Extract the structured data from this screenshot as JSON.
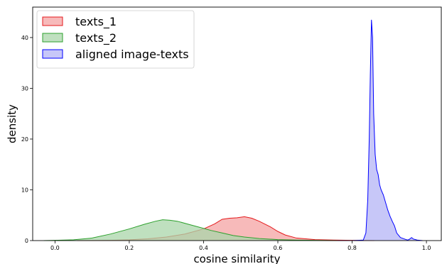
{
  "chart_data": {
    "type": "area",
    "xlabel": "cosine similarity",
    "ylabel": "density",
    "xlim": [
      -0.06,
      1.04
    ],
    "ylim": [
      0,
      46
    ],
    "xticks": [
      0.0,
      0.2,
      0.4,
      0.6,
      0.8,
      1.0
    ],
    "xtick_labels": [
      "0.0",
      "0.2",
      "0.4",
      "0.6",
      "0.8",
      "1.0"
    ],
    "yticks": [
      0,
      10,
      20,
      30,
      40
    ],
    "ytick_labels": [
      "0",
      "10",
      "20",
      "30",
      "40"
    ],
    "grid": false,
    "legend_position": "top-left",
    "series": [
      {
        "name": "texts_1",
        "color": "#e41a1c",
        "fill": "#f4a3a3",
        "points": [
          [
            0.06,
            0
          ],
          [
            0.15,
            0.05
          ],
          [
            0.2,
            0.15
          ],
          [
            0.25,
            0.35
          ],
          [
            0.3,
            0.7
          ],
          [
            0.35,
            1.3
          ],
          [
            0.4,
            2.3
          ],
          [
            0.43,
            3.3
          ],
          [
            0.45,
            4.2
          ],
          [
            0.47,
            4.4
          ],
          [
            0.49,
            4.5
          ],
          [
            0.51,
            4.7
          ],
          [
            0.53,
            4.4
          ],
          [
            0.55,
            3.8
          ],
          [
            0.58,
            2.7
          ],
          [
            0.6,
            1.8
          ],
          [
            0.62,
            1.1
          ],
          [
            0.65,
            0.5
          ],
          [
            0.7,
            0.2
          ],
          [
            0.75,
            0.1
          ],
          [
            0.8,
            0.05
          ],
          [
            0.86,
            0
          ]
        ]
      },
      {
        "name": "texts_2",
        "color": "#2ca02c",
        "fill": "#a9d6a9",
        "points": [
          [
            -0.03,
            0
          ],
          [
            0.0,
            0.05
          ],
          [
            0.05,
            0.15
          ],
          [
            0.1,
            0.5
          ],
          [
            0.15,
            1.3
          ],
          [
            0.2,
            2.3
          ],
          [
            0.24,
            3.2
          ],
          [
            0.27,
            3.8
          ],
          [
            0.29,
            4.1
          ],
          [
            0.31,
            4.0
          ],
          [
            0.33,
            3.8
          ],
          [
            0.36,
            3.2
          ],
          [
            0.39,
            2.6
          ],
          [
            0.42,
            2.0
          ],
          [
            0.45,
            1.5
          ],
          [
            0.48,
            1.0
          ],
          [
            0.51,
            0.7
          ],
          [
            0.55,
            0.4
          ],
          [
            0.6,
            0.2
          ],
          [
            0.65,
            0.1
          ],
          [
            0.7,
            0.05
          ],
          [
            0.76,
            0
          ]
        ]
      },
      {
        "name": "aligned image-texts",
        "color": "#0000ff",
        "fill": "#b4b4f5",
        "points": [
          [
            0.76,
            0
          ],
          [
            0.8,
            0
          ],
          [
            0.83,
            0.1
          ],
          [
            0.837,
            1.5
          ],
          [
            0.842,
            8
          ],
          [
            0.846,
            20
          ],
          [
            0.849,
            33
          ],
          [
            0.852,
            43.5
          ],
          [
            0.855,
            40
          ],
          [
            0.858,
            25
          ],
          [
            0.862,
            17
          ],
          [
            0.866,
            14
          ],
          [
            0.87,
            13
          ],
          [
            0.874,
            11
          ],
          [
            0.878,
            10
          ],
          [
            0.884,
            9
          ],
          [
            0.89,
            7.5
          ],
          [
            0.896,
            6
          ],
          [
            0.902,
            4.8
          ],
          [
            0.908,
            3.8
          ],
          [
            0.914,
            2.9
          ],
          [
            0.92,
            1.5
          ],
          [
            0.93,
            0.6
          ],
          [
            0.945,
            0.2
          ],
          [
            0.95,
            0.1
          ],
          [
            0.955,
            0.3
          ],
          [
            0.96,
            0.6
          ],
          [
            0.965,
            0.3
          ],
          [
            0.975,
            0.1
          ],
          [
            0.99,
            0
          ]
        ]
      }
    ]
  }
}
